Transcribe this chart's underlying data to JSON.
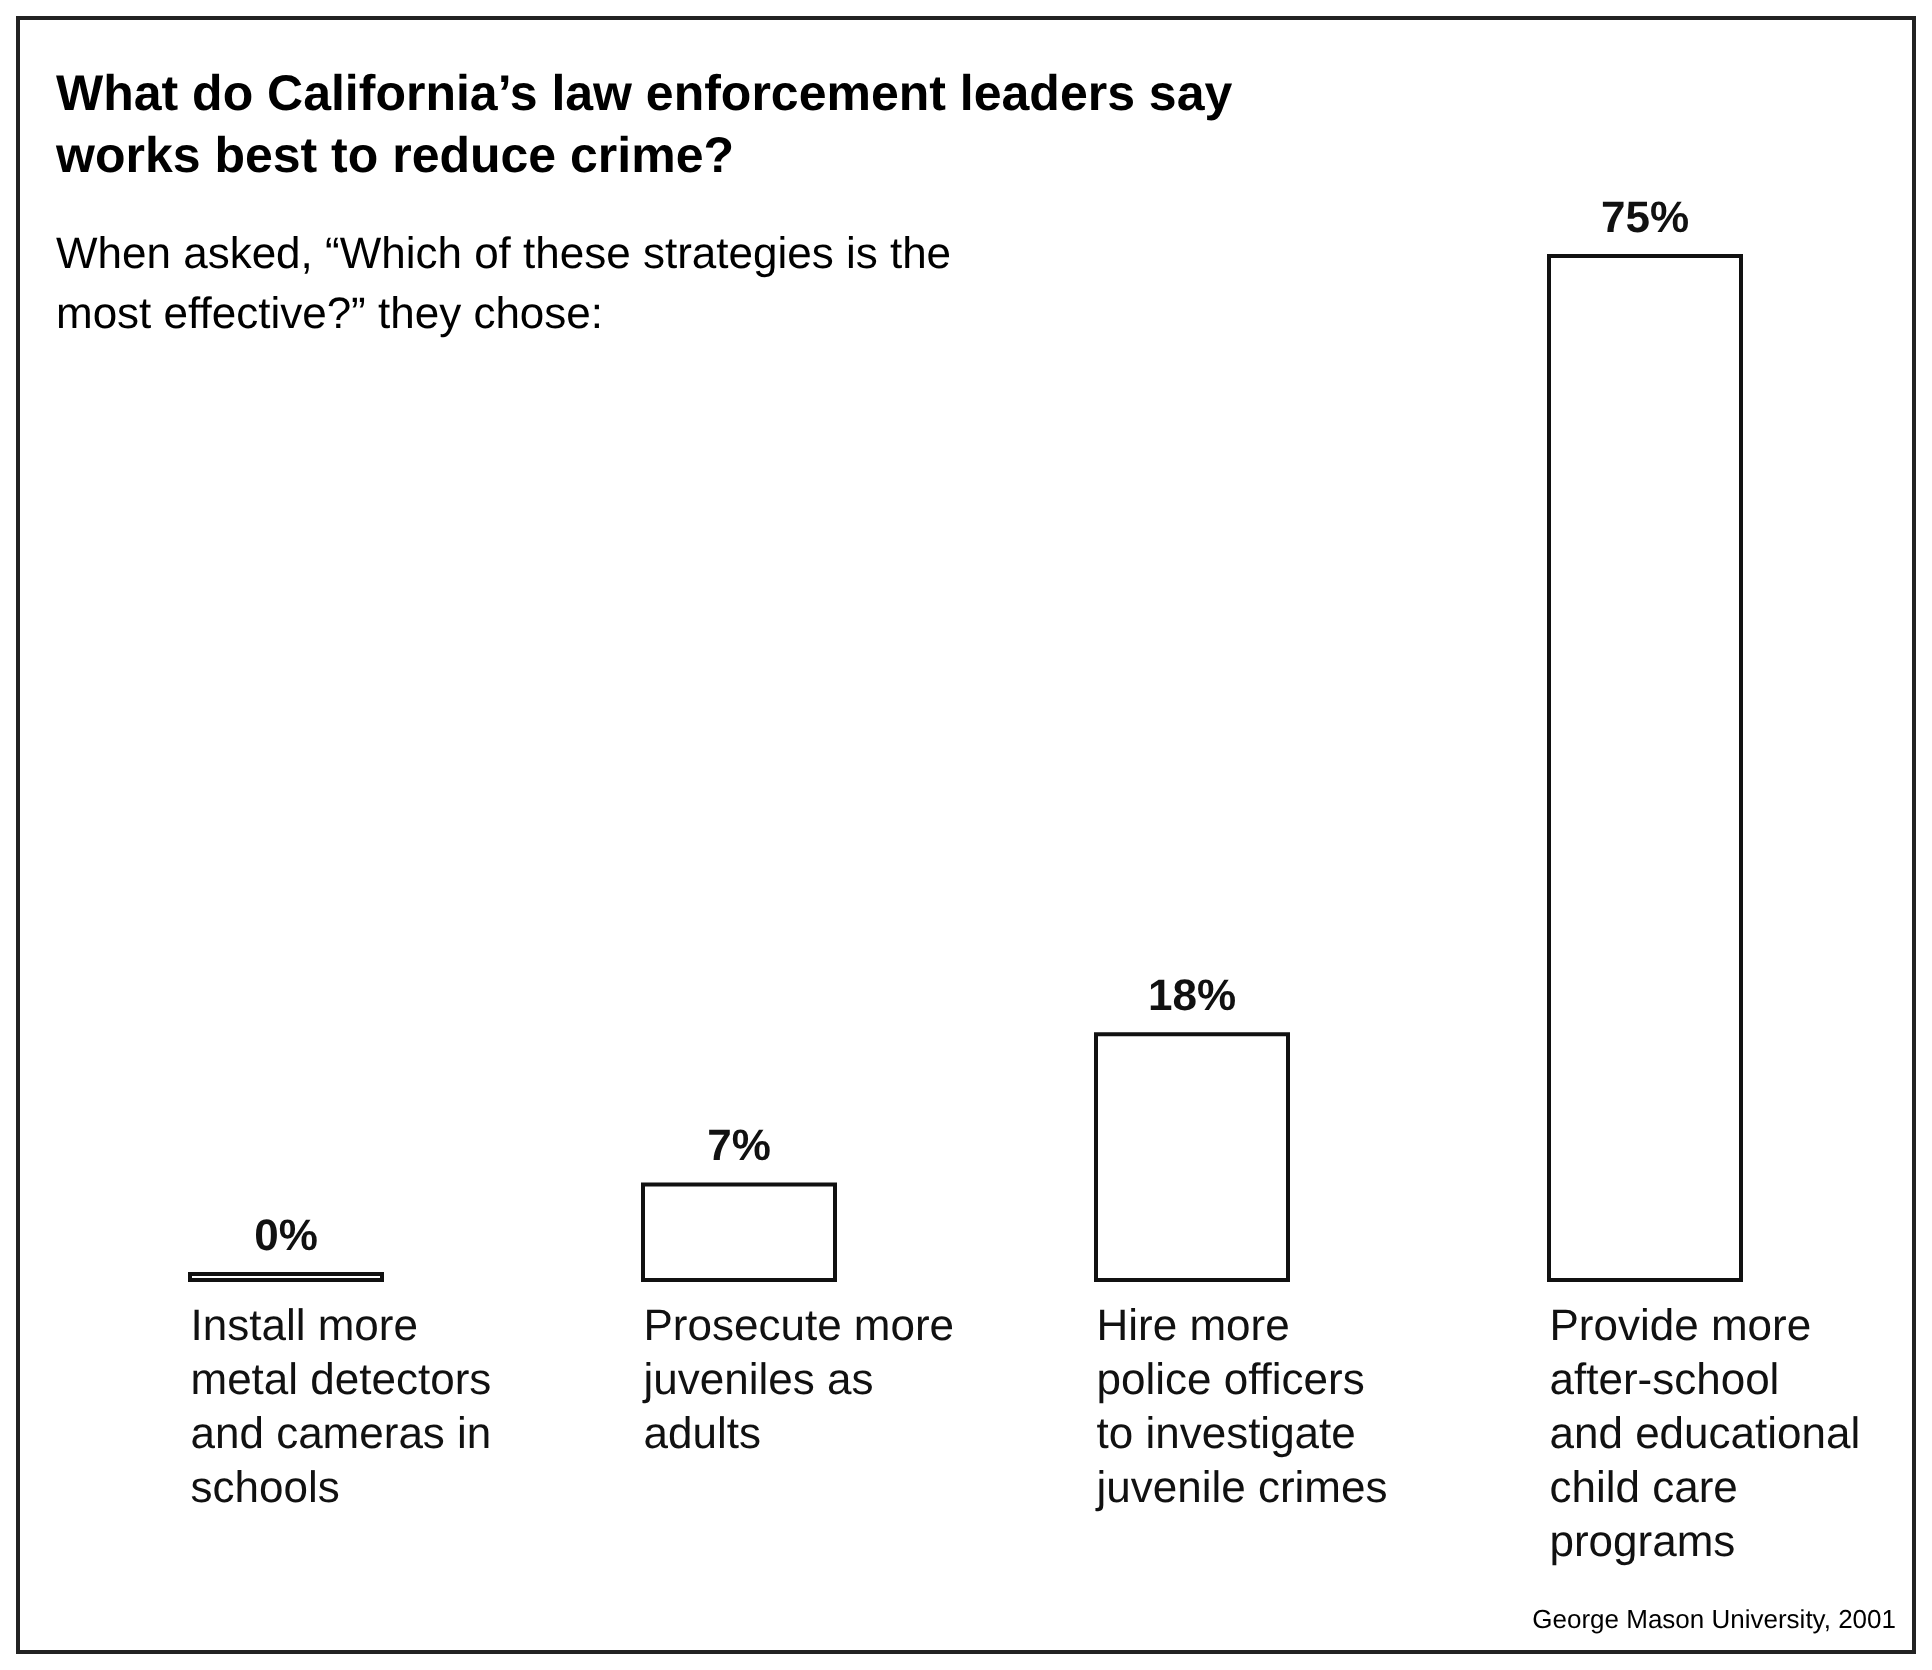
{
  "chart_data": {
    "type": "bar",
    "title": "What do California’s law enforcement leaders say works best to reduce crime?",
    "subtitle": "When asked, “Which of these strategies is the most effective?” they chose:",
    "categories": [
      "Install more metal detectors and cameras in schools",
      "Prosecute more juveniles as adults",
      "Hire more police officers to investigate juvenile crimes",
      "Provide more after-school and educational child care programs"
    ],
    "values": [
      0,
      7,
      18,
      75
    ],
    "value_labels": [
      "0%",
      "7%",
      "18%",
      "75%"
    ],
    "color": "#ffffff",
    "annotations": [
      "George Mason University, 2001"
    ]
  }
}
